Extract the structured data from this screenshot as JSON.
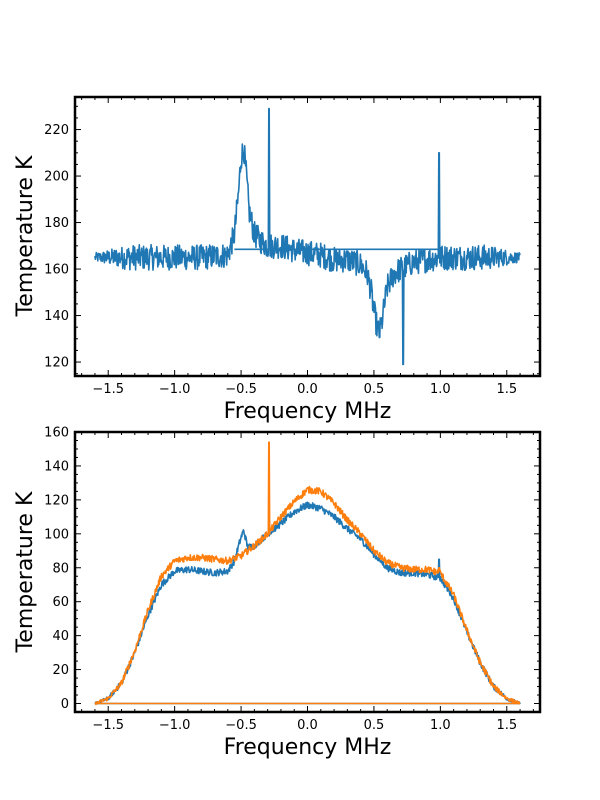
{
  "chart_data": [
    {
      "type": "line",
      "title": "",
      "xlabel": "Frequency MHz",
      "ylabel": "Temperature K",
      "xlim": [
        -1.75,
        1.75
      ],
      "ylim": [
        114,
        234
      ],
      "xticks": [
        -1.5,
        -1.0,
        -0.5,
        0.0,
        0.5,
        1.0,
        1.5
      ],
      "xtick_labels": [
        "−1.5",
        "−1.0",
        "−0.5",
        "0.0",
        "0.5",
        "1.0",
        "1.5"
      ],
      "yticks": [
        120,
        140,
        160,
        180,
        200,
        220
      ],
      "ytick_labels": [
        "120",
        "140",
        "160",
        "180",
        "200",
        "220"
      ],
      "grid": false,
      "series": [
        {
          "color": "#1f77b4",
          "noise": 5.5,
          "x": [
            -1.6,
            -1.3,
            -1.0,
            -0.8,
            -0.6,
            -0.55,
            -0.52,
            -0.5,
            -0.48,
            -0.46,
            -0.44,
            -0.4,
            -0.35,
            -0.3,
            -0.2,
            -0.1,
            0.0,
            0.1,
            0.2,
            0.3,
            0.4,
            0.45,
            0.48,
            0.5,
            0.52,
            0.54,
            0.56,
            0.58,
            0.6,
            0.65,
            0.7,
            0.8,
            1.0,
            1.2,
            1.4,
            1.6
          ],
          "y": [
            165,
            165,
            165,
            165,
            166,
            175,
            192,
            208,
            212,
            200,
            185,
            175,
            172,
            170,
            170,
            168,
            167,
            166,
            164,
            164,
            162,
            158,
            150,
            142,
            136,
            132,
            137,
            145,
            152,
            158,
            160,
            163,
            165,
            165,
            165,
            165
          ],
          "spikes": [
            {
              "x": -0.29,
              "y": 229
            },
            {
              "x": 0.72,
              "y": 119
            },
            {
              "x": 0.99,
              "y": 210
            }
          ],
          "baseline": [
            {
              "x": -0.55,
              "y": 168.5
            },
            {
              "x": 0.55,
              "y": 168.5
            },
            {
              "x": 1.0,
              "y": 168.5
            }
          ]
        }
      ]
    },
    {
      "type": "line",
      "title": "",
      "xlabel": "Frequency MHz",
      "ylabel": "Temperature K",
      "xlim": [
        -1.75,
        1.75
      ],
      "ylim": [
        -5,
        160
      ],
      "xticks": [
        -1.5,
        -1.0,
        -0.5,
        0.0,
        0.5,
        1.0,
        1.5
      ],
      "xtick_labels": [
        "−1.5",
        "−1.0",
        "−0.5",
        "0.0",
        "0.5",
        "1.0",
        "1.5"
      ],
      "yticks": [
        0,
        20,
        40,
        60,
        80,
        100,
        120,
        140,
        160
      ],
      "ytick_labels": [
        "0",
        "20",
        "40",
        "60",
        "80",
        "100",
        "120",
        "140",
        "160"
      ],
      "grid": false,
      "series": [
        {
          "color": "#1f77b4",
          "noise": 2.0,
          "x": [
            -1.6,
            -1.5,
            -1.4,
            -1.3,
            -1.2,
            -1.1,
            -1.0,
            -0.9,
            -0.8,
            -0.7,
            -0.6,
            -0.55,
            -0.5,
            -0.48,
            -0.45,
            -0.4,
            -0.3,
            -0.2,
            -0.1,
            0.0,
            0.1,
            0.2,
            0.3,
            0.4,
            0.5,
            0.6,
            0.7,
            0.8,
            0.9,
            1.0,
            1.1,
            1.2,
            1.3,
            1.4,
            1.5,
            1.6
          ],
          "y": [
            0,
            3,
            12,
            30,
            52,
            70,
            78,
            79,
            78,
            77,
            78,
            84,
            98,
            102,
            92,
            93,
            100,
            106,
            113,
            117,
            115,
            110,
            103,
            97,
            88,
            80,
            77,
            77,
            76,
            74,
            62,
            42,
            24,
            10,
            3,
            0
          ],
          "spikes": [
            {
              "x": 0.99,
              "y": 85
            }
          ],
          "baseline": [
            {
              "x": -1.6,
              "y": 0
            },
            {
              "x": 1.6,
              "y": 0
            }
          ]
        },
        {
          "color": "#ff7f0e",
          "noise": 2.0,
          "x": [
            -1.6,
            -1.5,
            -1.4,
            -1.3,
            -1.2,
            -1.1,
            -1.0,
            -0.9,
            -0.8,
            -0.7,
            -0.6,
            -0.5,
            -0.4,
            -0.3,
            -0.2,
            -0.1,
            0.0,
            0.1,
            0.2,
            0.3,
            0.4,
            0.5,
            0.6,
            0.7,
            0.8,
            0.9,
            1.0,
            1.1,
            1.2,
            1.3,
            1.4,
            1.5,
            1.6
          ],
          "y": [
            0,
            3,
            12,
            31,
            55,
            75,
            84,
            86,
            86,
            85,
            84,
            87,
            93,
            100,
            110,
            119,
            126,
            125,
            118,
            108,
            100,
            90,
            83,
            80,
            79,
            79,
            77,
            64,
            43,
            24,
            10,
            3,
            0
          ],
          "spikes": [
            {
              "x": -0.29,
              "y": 154
            },
            {
              "x": 0.99,
              "y": 80
            }
          ],
          "baseline": [
            {
              "x": -1.6,
              "y": 0
            },
            {
              "x": 1.6,
              "y": 0
            }
          ]
        }
      ]
    }
  ]
}
